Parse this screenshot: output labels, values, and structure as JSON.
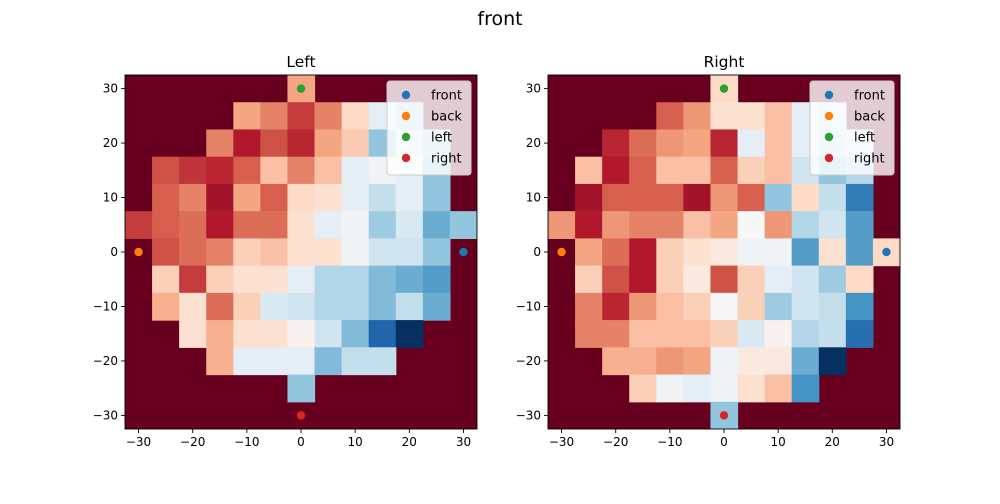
{
  "figure_title": "front",
  "chart_data": [
    {
      "type": "heatmap",
      "title": "Left",
      "xlabel": "",
      "ylabel": "",
      "colormap": "RdBu",
      "mask_color": "#67001f",
      "xlim": [
        -32.5,
        32.5
      ],
      "ylim": [
        -32.5,
        32.5
      ],
      "grid_origin": [
        -30,
        30
      ],
      "cell_step": 5,
      "xticks": [
        -30,
        -20,
        -10,
        0,
        10,
        20,
        30
      ],
      "yticks": [
        -30,
        -20,
        -10,
        0,
        10,
        20,
        30
      ],
      "grid": false,
      "legend_position": "top-right",
      "values": [
        [
          null,
          null,
          null,
          null,
          null,
          null,
          0.7,
          null,
          null,
          null,
          null,
          null,
          null
        ],
        [
          null,
          null,
          null,
          null,
          0.7,
          0.75,
          0.85,
          0.75,
          0.6,
          0.45,
          0.35,
          null,
          null
        ],
        [
          null,
          null,
          null,
          0.75,
          0.9,
          0.82,
          0.88,
          0.7,
          0.63,
          0.3,
          0.4,
          0.35,
          null
        ],
        [
          null,
          0.82,
          0.86,
          0.88,
          0.8,
          0.65,
          0.75,
          0.65,
          0.45,
          0.48,
          0.45,
          0.3,
          null
        ],
        [
          null,
          0.8,
          0.75,
          0.92,
          0.7,
          0.8,
          0.6,
          0.58,
          0.45,
          0.38,
          0.45,
          0.3,
          null
        ],
        [
          0.85,
          0.8,
          0.78,
          0.9,
          0.78,
          0.78,
          0.58,
          0.45,
          0.48,
          0.32,
          0.42,
          0.25,
          0.3
        ],
        [
          null,
          0.82,
          0.78,
          0.75,
          0.62,
          0.65,
          0.58,
          0.58,
          0.48,
          0.4,
          0.4,
          0.3,
          null
        ],
        [
          null,
          0.62,
          0.85,
          0.62,
          0.58,
          0.58,
          0.45,
          0.35,
          0.35,
          0.28,
          0.25,
          0.22,
          null
        ],
        [
          null,
          0.68,
          0.58,
          0.78,
          0.62,
          0.42,
          0.4,
          0.35,
          0.35,
          0.28,
          0.38,
          0.25,
          null
        ],
        [
          null,
          null,
          0.58,
          0.68,
          0.58,
          0.58,
          0.52,
          0.4,
          0.28,
          0.1,
          0.0,
          null,
          null
        ],
        [
          null,
          null,
          null,
          0.68,
          0.45,
          0.45,
          0.45,
          0.28,
          0.38,
          0.38,
          null,
          null,
          null
        ],
        [
          null,
          null,
          null,
          null,
          null,
          null,
          0.3,
          null,
          null,
          null,
          null,
          null,
          null
        ]
      ],
      "series": [
        {
          "name": "front",
          "color": "#1f77b4",
          "x": 30,
          "y": 0
        },
        {
          "name": "back",
          "color": "#ff7f0e",
          "x": -30,
          "y": 0
        },
        {
          "name": "left",
          "color": "#2ca02c",
          "x": 0,
          "y": 30
        },
        {
          "name": "right",
          "color": "#d62728",
          "x": 0,
          "y": -30
        }
      ]
    },
    {
      "type": "heatmap",
      "title": "Right",
      "xlabel": "",
      "ylabel": "",
      "colormap": "RdBu",
      "mask_color": "#67001f",
      "xlim": [
        -32.5,
        32.5
      ],
      "ylim": [
        -32.5,
        32.5
      ],
      "grid_origin": [
        -30,
        30
      ],
      "cell_step": 5,
      "xticks": [
        -30,
        -20,
        -10,
        0,
        10,
        20,
        30
      ],
      "yticks": [
        -30,
        -20,
        -10,
        0,
        10,
        20,
        30
      ],
      "grid": false,
      "legend_position": "top-right",
      "values": [
        [
          null,
          null,
          null,
          null,
          null,
          null,
          0.6,
          null,
          null,
          null,
          null,
          null,
          null
        ],
        [
          null,
          null,
          null,
          null,
          0.8,
          0.72,
          0.58,
          0.58,
          0.65,
          0.45,
          0.4,
          null,
          null
        ],
        [
          null,
          null,
          0.88,
          0.78,
          0.72,
          0.7,
          0.88,
          0.45,
          0.65,
          0.45,
          0.38,
          0.4,
          null
        ],
        [
          null,
          0.65,
          0.9,
          0.8,
          0.65,
          0.65,
          0.8,
          0.62,
          0.65,
          0.4,
          0.3,
          0.35,
          null
        ],
        [
          null,
          0.92,
          0.8,
          0.8,
          0.8,
          0.92,
          0.72,
          0.8,
          0.3,
          0.6,
          0.38,
          0.15,
          null
        ],
        [
          0.72,
          0.9,
          0.72,
          0.75,
          0.75,
          0.65,
          0.7,
          0.5,
          0.72,
          0.35,
          0.4,
          0.22,
          null
        ],
        [
          null,
          0.7,
          0.78,
          0.9,
          0.62,
          0.58,
          0.55,
          0.48,
          0.48,
          0.22,
          0.58,
          0.22,
          0.6
        ],
        [
          null,
          0.62,
          0.82,
          0.9,
          0.62,
          0.55,
          0.82,
          0.62,
          0.45,
          0.4,
          0.32,
          0.6,
          null
        ],
        [
          null,
          0.75,
          0.88,
          0.72,
          0.65,
          0.62,
          0.5,
          0.62,
          0.32,
          0.4,
          0.38,
          0.2,
          null
        ],
        [
          null,
          0.75,
          0.75,
          0.65,
          0.65,
          0.65,
          0.62,
          0.42,
          0.52,
          0.35,
          0.38,
          0.12,
          null
        ],
        [
          null,
          null,
          0.68,
          0.68,
          0.72,
          0.7,
          0.48,
          0.55,
          0.55,
          0.25,
          0.0,
          null,
          null
        ],
        [
          null,
          null,
          null,
          0.62,
          0.48,
          0.45,
          0.48,
          0.58,
          0.65,
          0.2,
          null,
          null,
          null
        ],
        [
          null,
          null,
          null,
          null,
          null,
          null,
          0.3,
          null,
          null,
          null,
          null,
          null,
          null
        ]
      ],
      "series": [
        {
          "name": "front",
          "color": "#1f77b4",
          "x": 30,
          "y": 0
        },
        {
          "name": "back",
          "color": "#ff7f0e",
          "x": -30,
          "y": 0
        },
        {
          "name": "left",
          "color": "#2ca02c",
          "x": 0,
          "y": 30
        },
        {
          "name": "right",
          "color": "#d62728",
          "x": 0,
          "y": -30
        }
      ]
    }
  ]
}
